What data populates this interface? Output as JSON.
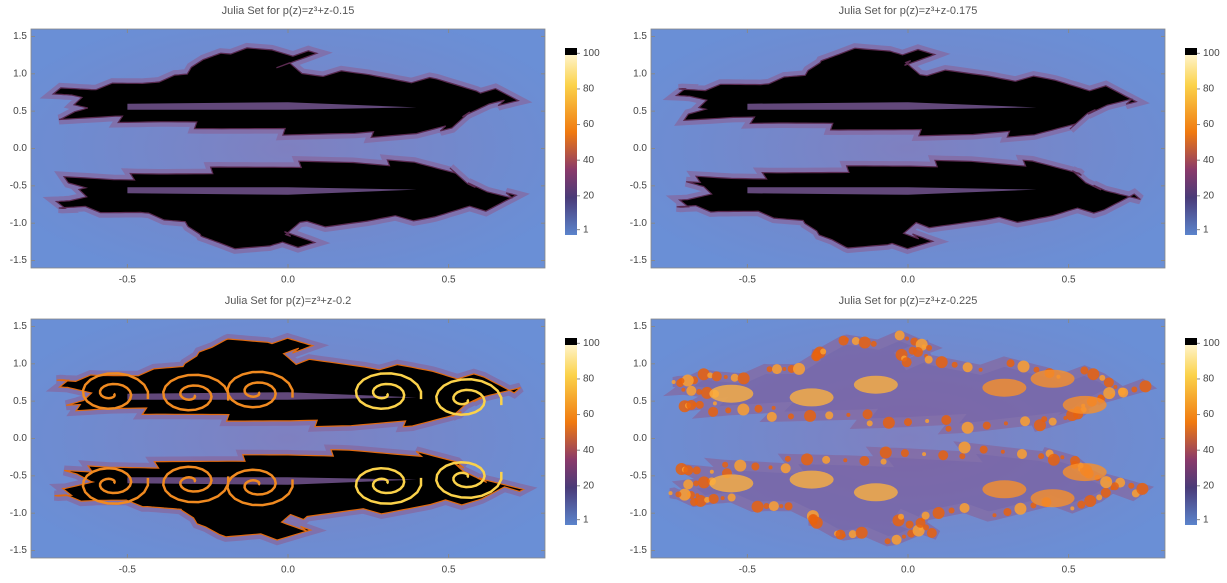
{
  "chart_data": [
    {
      "type": "heatmap",
      "title": "Julia Set for p(z)=z³+z-0.15",
      "xlim": [
        -0.8,
        0.8
      ],
      "ylim": [
        -1.6,
        1.6
      ],
      "xticks": [
        -0.5,
        {
          "value": 0,
          "label": "0.0"
        },
        0.5
      ],
      "yticks": [
        -1.5,
        {
          "value": -1,
          "label": "-1.0"
        },
        -0.5,
        {
          "value": 0,
          "label": "0.0"
        },
        0.5,
        {
          "value": 1,
          "label": "1.0"
        },
        1.5
      ],
      "colorbar_lim": [
        -2,
        103
      ],
      "colorbar_ticks": [
        1,
        20,
        40,
        60,
        80,
        100
      ]
    },
    {
      "type": "heatmap",
      "title": "Julia Set for p(z)=z³+z-0.175",
      "xlim": [
        -0.8,
        0.8
      ],
      "ylim": [
        -1.6,
        1.6
      ],
      "xticks": [
        -0.5,
        {
          "value": 0,
          "label": "0.0"
        },
        0.5
      ],
      "yticks": [
        -1.5,
        {
          "value": -1,
          "label": "-1.0"
        },
        -0.5,
        {
          "value": 0,
          "label": "0.0"
        },
        0.5,
        {
          "value": 1,
          "label": "1.0"
        },
        1.5
      ],
      "colorbar_lim": [
        -2,
        103
      ],
      "colorbar_ticks": [
        1,
        20,
        40,
        60,
        80,
        100
      ]
    },
    {
      "type": "heatmap",
      "title": "Julia Set for p(z)=z³+z-0.2",
      "xlim": [
        -0.8,
        0.8
      ],
      "ylim": [
        -1.6,
        1.6
      ],
      "xticks": [
        -0.5,
        {
          "value": 0,
          "label": "0.0"
        },
        0.5
      ],
      "yticks": [
        -1.5,
        {
          "value": -1,
          "label": "-1.0"
        },
        -0.5,
        {
          "value": 0,
          "label": "0.0"
        },
        0.5,
        {
          "value": 1,
          "label": "1.0"
        },
        1.5
      ],
      "colorbar_lim": [
        -2,
        103
      ],
      "colorbar_ticks": [
        1,
        20,
        40,
        60,
        80,
        100
      ]
    },
    {
      "type": "heatmap",
      "title": "Julia Set for p(z)=z³+z-0.225",
      "xlim": [
        -0.8,
        0.8
      ],
      "ylim": [
        -1.6,
        1.6
      ],
      "xticks": [
        -0.5,
        {
          "value": 0,
          "label": "0.0"
        },
        0.5
      ],
      "yticks": [
        -1.5,
        {
          "value": -1,
          "label": "-1.0"
        },
        -0.5,
        {
          "value": 0,
          "label": "0.0"
        },
        0.5,
        {
          "value": 1,
          "label": "1.0"
        },
        1.5
      ],
      "colorbar_lim": [
        -2,
        103
      ],
      "colorbar_ticks": [
        1,
        20,
        40,
        60,
        80,
        100
      ]
    }
  ]
}
